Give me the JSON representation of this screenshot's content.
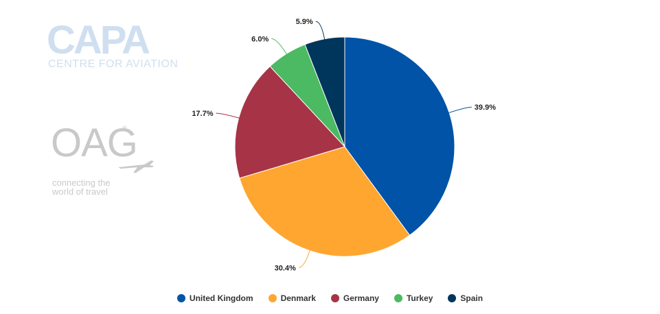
{
  "watermarks": {
    "capa": {
      "name": "CAPA",
      "subtitle": "CENTRE FOR AVIATION",
      "color": "#cfdff0"
    },
    "oag": {
      "name": "OAG",
      "registered": "®",
      "tagline_line1": "connecting the",
      "tagline_line2": "world of travel",
      "color": "#c9c9c9",
      "icon": "airplane-icon"
    }
  },
  "chart_data": {
    "type": "pie",
    "title": "",
    "start_angle_deg": 0,
    "direction": "clockwise",
    "series": [
      {
        "name": "",
        "slices": [
          {
            "label": "United Kingdom",
            "value": 39.9,
            "display": "39.9%",
            "color": "#0053a6"
          },
          {
            "label": "Denmark",
            "value": 30.4,
            "display": "30.4%",
            "color": "#ffa630"
          },
          {
            "label": "Germany",
            "value": 17.7,
            "display": "17.7%",
            "color": "#a63446"
          },
          {
            "label": "Turkey",
            "value": 6.0,
            "display": "6.0%",
            "color": "#4cb963"
          },
          {
            "label": "Spain",
            "value": 5.9,
            "display": "5.9%",
            "color": "#00365c"
          }
        ]
      }
    ],
    "legend": {
      "position": "bottom",
      "items": [
        "United Kingdom",
        "Denmark",
        "Germany",
        "Turkey",
        "Spain"
      ]
    }
  }
}
